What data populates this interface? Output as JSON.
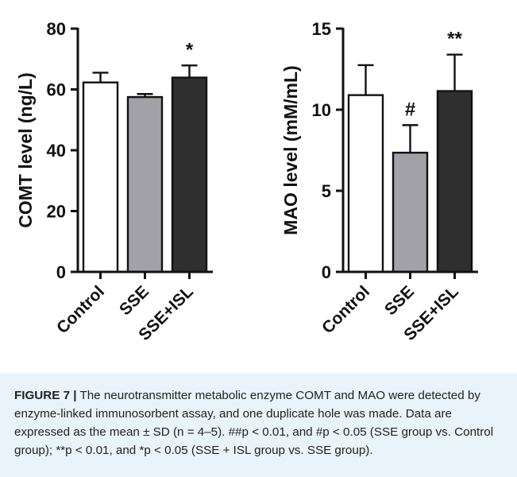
{
  "chart_data": [
    {
      "type": "bar",
      "categories": [
        "Control",
        "SSE",
        "SSE+ISL"
      ],
      "values": [
        62.3,
        57.5,
        63.9
      ],
      "error": [
        3.2,
        1.0,
        4.0
      ],
      "significance": [
        "",
        "",
        "*"
      ],
      "colors": [
        "#ffffff",
        "#a3a1a8",
        "#2f2f2f"
      ],
      "ylabel": "COMT level (ng/L)",
      "ylim": [
        0,
        80
      ],
      "yticks": [
        0,
        20,
        40,
        60,
        80
      ],
      "grid": false
    },
    {
      "type": "bar",
      "categories": [
        "Control",
        "SSE",
        "SSE+ISL"
      ],
      "values": [
        10.9,
        7.35,
        11.15
      ],
      "error": [
        1.85,
        1.7,
        2.25
      ],
      "significance": [
        "",
        "#",
        "**"
      ],
      "colors": [
        "#ffffff",
        "#a3a1a8",
        "#2f2f2f"
      ],
      "ylabel": "MAO level (mM/mL)",
      "ylim": [
        0,
        15
      ],
      "yticks": [
        0,
        5,
        10,
        15
      ],
      "grid": false
    }
  ],
  "caption": {
    "lead": "FIGURE 7 |",
    "text": " The neurotransmitter metabolic enzyme COMT and MAO were detected by enzyme-linked immunosorbent assay, and one duplicate hole was made. Data are expressed as the mean ± SD (n = 4–5). ##p < 0.01, and #p < 0.05 (SSE group vs. Control group); **p < 0.01, and *p < 0.05 (SSE + ISL group vs. SSE group)."
  }
}
